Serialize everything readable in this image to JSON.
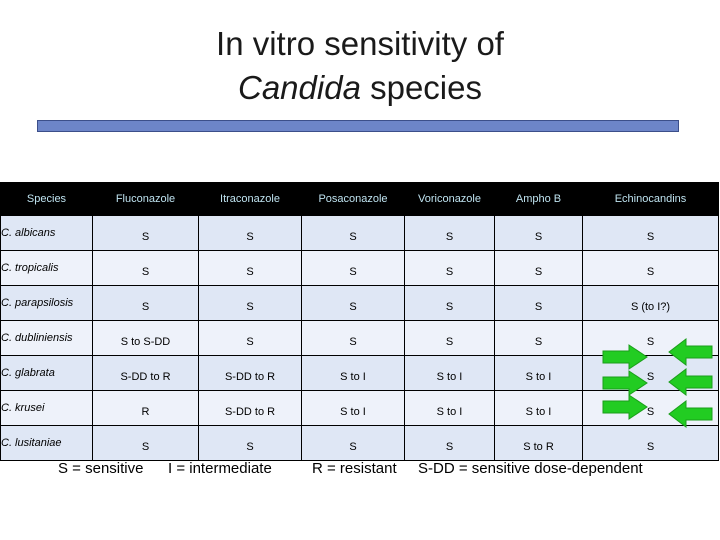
{
  "slide": {
    "title_line1": "In vitro sensitivity of",
    "title_italic": "Candida",
    "title_rest": " species",
    "accent_color": "#6d85c8"
  },
  "table": {
    "headers": [
      "Species",
      "Fluconazole",
      "Itraconazole",
      "Posaconazole",
      "Voriconazole",
      "Ampho B",
      "Echinocandins"
    ],
    "rows": [
      [
        "C. albicans",
        "S",
        "S",
        "S",
        "S",
        "S",
        "S"
      ],
      [
        "C. tropicalis",
        "S",
        "S",
        "S",
        "S",
        "S",
        "S"
      ],
      [
        "C. parapsilosis",
        "S",
        "S",
        "S",
        "S",
        "S",
        "S (to I?)"
      ],
      [
        "C. dubliniensis",
        "S to S-DD",
        "S",
        "S",
        "S",
        "S",
        "S"
      ],
      [
        "C. glabrata",
        "S-DD to R",
        "S-DD to R",
        "S to I",
        "S to I",
        "S to I",
        "S"
      ],
      [
        "C. krusei",
        "R",
        "S-DD to R",
        "S to I",
        "S to I",
        "S to I",
        "S"
      ],
      [
        "C. lusitaniae",
        "S",
        "S",
        "S",
        "S",
        "S to R",
        "S"
      ]
    ]
  },
  "legend": {
    "sensitive": "S = sensitive",
    "intermediate": "I = intermediate",
    "resistant": "R = resistant",
    "sdd": "S-DD = sensitive dose-dependent"
  },
  "arrows": [
    {
      "icon": "right-arrow-icon",
      "color": "#22cc22"
    },
    {
      "icon": "left-arrow-icon",
      "color": "#22cc22"
    }
  ]
}
